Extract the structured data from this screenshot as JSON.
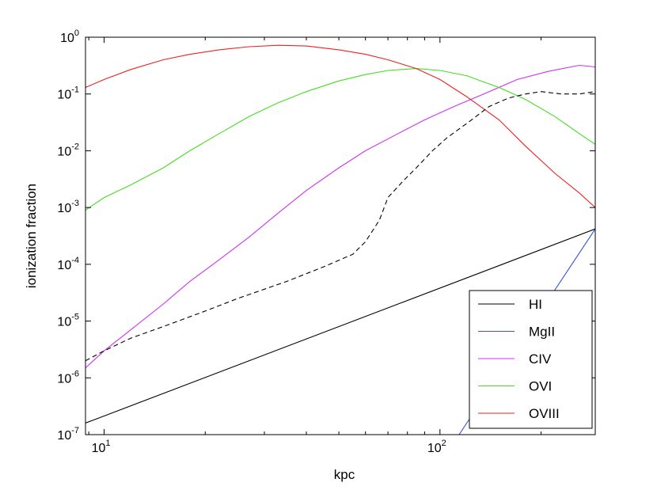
{
  "chart_data": {
    "type": "line",
    "xscale": "log",
    "yscale": "log",
    "xlim": [
      8.8,
      290
    ],
    "ylim": [
      1e-07,
      1
    ],
    "xlabel": "kpc",
    "ylabel": "ionization fraction",
    "legend_position": "bottom-right",
    "x_ticks": [
      {
        "value": 10,
        "base": "10",
        "exp": "1"
      },
      {
        "value": 100,
        "base": "10",
        "exp": "2"
      }
    ],
    "y_ticks": [
      {
        "value": 1e-07,
        "base": "10",
        "exp": "-7"
      },
      {
        "value": 1e-06,
        "base": "10",
        "exp": "-6"
      },
      {
        "value": 1e-05,
        "base": "10",
        "exp": "-5"
      },
      {
        "value": 0.0001,
        "base": "10",
        "exp": "-4"
      },
      {
        "value": 0.001,
        "base": "10",
        "exp": "-3"
      },
      {
        "value": 0.01,
        "base": "10",
        "exp": "-2"
      },
      {
        "value": 0.1,
        "base": "10",
        "exp": "-1"
      },
      {
        "value": 1,
        "base": "10",
        "exp": "0"
      }
    ],
    "series": [
      {
        "name": "HI",
        "color": "#000000",
        "style": "solid",
        "in_legend": true,
        "x": [
          8.8,
          290
        ],
        "y": [
          1.6e-07,
          0.00042
        ]
      },
      {
        "name": "MgII",
        "color": "#3355dd",
        "style": "solid",
        "in_legend": true,
        "x": [
          114,
          290
        ],
        "y": [
          1e-07,
          0.00042
        ]
      },
      {
        "name": "CIV",
        "color": "#cc33ee",
        "style": "solid",
        "in_legend": true,
        "x": [
          8.8,
          10,
          12,
          15,
          18,
          22,
          27,
          33,
          40,
          50,
          60,
          75,
          90,
          110,
          135,
          170,
          210,
          260,
          290
        ],
        "y": [
          1.5e-06,
          3e-06,
          7e-06,
          2e-05,
          5e-05,
          0.00012,
          0.0003,
          0.0008,
          0.002,
          0.005,
          0.01,
          0.02,
          0.035,
          0.06,
          0.1,
          0.18,
          0.25,
          0.32,
          0.3
        ]
      },
      {
        "name": "OVI",
        "color": "#44dd22",
        "style": "solid",
        "in_legend": true,
        "x": [
          8.8,
          10,
          12,
          15,
          18,
          22,
          27,
          33,
          40,
          50,
          60,
          70,
          85,
          100,
          120,
          150,
          180,
          220,
          260,
          290
        ],
        "y": [
          0.0009,
          0.0015,
          0.0025,
          0.005,
          0.01,
          0.02,
          0.04,
          0.07,
          0.11,
          0.17,
          0.22,
          0.26,
          0.28,
          0.26,
          0.21,
          0.13,
          0.08,
          0.04,
          0.02,
          0.013
        ]
      },
      {
        "name": "OVIII",
        "color": "#ee2222",
        "style": "solid",
        "in_legend": true,
        "x": [
          8.8,
          10,
          12,
          15,
          18,
          22,
          27,
          33,
          40,
          50,
          60,
          70,
          85,
          100,
          120,
          150,
          180,
          220,
          260,
          290
        ],
        "y": [
          0.13,
          0.18,
          0.27,
          0.4,
          0.5,
          0.6,
          0.68,
          0.72,
          0.7,
          0.6,
          0.5,
          0.4,
          0.28,
          0.18,
          0.09,
          0.035,
          0.012,
          0.004,
          0.0018,
          0.001
        ]
      },
      {
        "name": "",
        "color": "#000000",
        "style": "dashed",
        "in_legend": false,
        "x": [
          8.8,
          10,
          12,
          15,
          20,
          25,
          35,
          45,
          55,
          60,
          66,
          70,
          78,
          85,
          95,
          105,
          120,
          140,
          160,
          180,
          200,
          230,
          260,
          290
        ],
        "y": [
          2e-06,
          3e-06,
          5e-06,
          8e-06,
          1.5e-05,
          2.5e-05,
          5e-05,
          9e-05,
          0.00015,
          0.00025,
          0.0006,
          0.0015,
          0.003,
          0.005,
          0.01,
          0.017,
          0.03,
          0.06,
          0.085,
          0.1,
          0.11,
          0.1,
          0.1,
          0.11
        ]
      }
    ]
  }
}
